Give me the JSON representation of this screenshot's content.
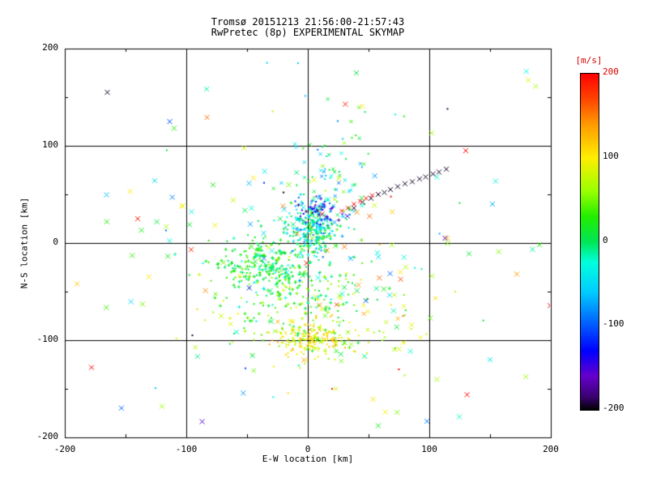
{
  "window": {
    "background": "#ffffff"
  },
  "chart_data": {
    "type": "scatter",
    "title": "Tromsø 20151213 21:56:00-21:57:43",
    "subtitle": "RwPretec (8p) EXPERIMENTAL SKYMAP",
    "xlabel": "E-W location [km]",
    "ylabel": "N-S location [km]",
    "xlim": [
      -200,
      200
    ],
    "ylim": [
      -200,
      200
    ],
    "xticks": [
      -200,
      -100,
      0,
      100,
      200
    ],
    "yticks": [
      -200,
      -100,
      0,
      100,
      200
    ],
    "grid": true,
    "axis_color": "#000000",
    "seed": 20151213,
    "colorbar": {
      "label": "[m/s]",
      "label_color": "#dd0000",
      "min": -200,
      "max": 200,
      "ticks": [
        200,
        100,
        0,
        -100,
        -200
      ],
      "tick_colors": [
        "#dd0000",
        "#000000",
        "#000000",
        "#000000",
        "#000000"
      ],
      "stops": [
        {
          "v": -200,
          "c": "#000000"
        },
        {
          "v": -185,
          "c": "#3a0070"
        },
        {
          "v": -160,
          "c": "#6600cc"
        },
        {
          "v": -130,
          "c": "#0000ff"
        },
        {
          "v": -95,
          "c": "#0066ff"
        },
        {
          "v": -60,
          "c": "#00ccff"
        },
        {
          "v": -25,
          "c": "#00ffdd"
        },
        {
          "v": 0,
          "c": "#00e655"
        },
        {
          "v": 30,
          "c": "#22ee00"
        },
        {
          "v": 60,
          "c": "#99ff00"
        },
        {
          "v": 100,
          "c": "#ffee00"
        },
        {
          "v": 140,
          "c": "#ff9900"
        },
        {
          "v": 170,
          "c": "#ff4400"
        },
        {
          "v": 200,
          "c": "#ff0000"
        }
      ]
    },
    "points": {
      "clusters": [
        {
          "name": "central-cyan-core",
          "cx": 3,
          "cy": 15,
          "sdx": 10,
          "sdy": 14,
          "count": 260,
          "v_mean": -25,
          "v_sd": 35,
          "markers": [
            "dot",
            "dot",
            "plus"
          ],
          "size": 4
        },
        {
          "name": "navy-subcluster",
          "cx": 8,
          "cy": 33,
          "sdx": 7,
          "sdy": 7,
          "count": 50,
          "v_mean": -140,
          "v_sd": 30,
          "markers": [
            "dot",
            "plus"
          ],
          "size": 4
        },
        {
          "name": "upper-plume",
          "cx": 15,
          "cy": 70,
          "sdx": 18,
          "sdy": 32,
          "count": 90,
          "v_mean": -20,
          "v_sd": 45,
          "markers": [
            "dot",
            "x"
          ],
          "size": 4
        },
        {
          "name": "green-left-mass",
          "cx": -35,
          "cy": -25,
          "sdx": 22,
          "sdy": 15,
          "count": 260,
          "v_mean": 15,
          "v_sd": 22,
          "markers": [
            "plus",
            "dot"
          ],
          "size": 4
        },
        {
          "name": "green-mid-lower",
          "cx": -5,
          "cy": -55,
          "sdx": 30,
          "sdy": 25,
          "count": 160,
          "v_mean": 25,
          "v_sd": 30,
          "markers": [
            "dot",
            "plus"
          ],
          "size": 4
        },
        {
          "name": "yellow-bottom-core",
          "cx": 5,
          "cy": -98,
          "sdx": 16,
          "sdy": 8,
          "count": 200,
          "v_mean": 95,
          "v_sd": 25,
          "markers": [
            "dot"
          ],
          "size": 4
        },
        {
          "name": "yellow-bottom-halo",
          "cx": 10,
          "cy": -92,
          "sdx": 45,
          "sdy": 25,
          "count": 90,
          "v_mean": 85,
          "v_sd": 35,
          "markers": [
            "dot",
            "x"
          ],
          "size": 5
        },
        {
          "name": "wide-x-field",
          "cx": 0,
          "cy": -10,
          "sdx": 95,
          "sdy": 85,
          "count": 130,
          "v_mean": 40,
          "v_sd": 70,
          "markers": [
            "x"
          ],
          "size": 6
        },
        {
          "name": "far-scatter",
          "cx": 0,
          "cy": 0,
          "sdx": 150,
          "sdy": 120,
          "count": 40,
          "v_mean": 20,
          "v_sd": 80,
          "markers": [
            "x",
            "dot"
          ],
          "size": 6
        }
      ],
      "streaks": [
        {
          "name": "black-x-streak",
          "v": -195,
          "marker": "x",
          "size": 6,
          "points": [
            [
              38,
              36
            ],
            [
              45,
              42
            ],
            [
              52,
              46
            ],
            [
              58,
              50
            ],
            [
              63,
              52
            ],
            [
              68,
              55
            ],
            [
              74,
              58
            ],
            [
              80,
              61
            ],
            [
              86,
              63
            ],
            [
              92,
              66
            ],
            [
              97,
              68
            ],
            [
              103,
              71
            ],
            [
              108,
              73
            ],
            [
              114,
              76
            ]
          ]
        },
        {
          "name": "red-x-streak",
          "v": 195,
          "marker": "x",
          "size": 5,
          "points": [
            [
              28,
              33
            ],
            [
              33,
              36
            ],
            [
              38,
              40
            ],
            [
              43,
              43
            ],
            [
              48,
              46
            ],
            [
              53,
              49
            ]
          ]
        }
      ],
      "outliers": [
        [
          -165,
          155,
          -195,
          "x"
        ],
        [
          115,
          138,
          -190,
          "dot"
        ],
        [
          130,
          95,
          195,
          "x"
        ],
        [
          -178,
          -128,
          195,
          "x"
        ],
        [
          -140,
          25,
          185,
          "x"
        ],
        [
          75,
          -130,
          195,
          "dot"
        ],
        [
          20,
          -150,
          190,
          "dot"
        ],
        [
          -95,
          -95,
          -190,
          "dot"
        ],
        [
          -20,
          52,
          -200,
          "dot"
        ],
        [
          113,
          5,
          -170,
          "x"
        ],
        [
          -190,
          -42,
          120,
          "x"
        ],
        [
          172,
          -32,
          140,
          "x"
        ],
        [
          58,
          -188,
          20,
          "x"
        ],
        [
          -120,
          -168,
          60,
          "x"
        ],
        [
          150,
          -120,
          -40,
          "x"
        ],
        [
          40,
          175,
          5,
          "x"
        ],
        [
          -8,
          185,
          -55,
          "dot"
        ],
        [
          152,
          40,
          -70,
          "x"
        ],
        [
          -110,
          118,
          30,
          "x"
        ]
      ]
    }
  }
}
